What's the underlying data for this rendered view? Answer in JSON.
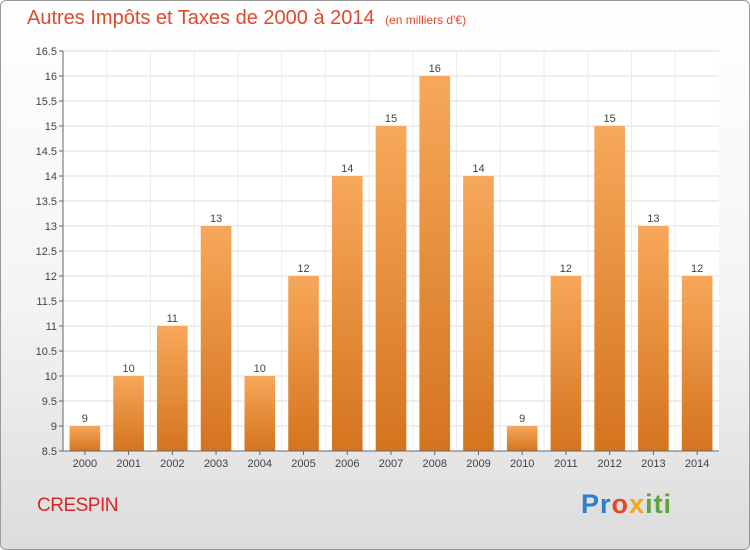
{
  "header": {
    "title": "Autres Impôts et Taxes de 2000 à 2014",
    "subtitle": "(en milliers d'€)"
  },
  "footer": {
    "place": "CRESPIN",
    "logo": "Proxiti"
  },
  "colors": {
    "title": "#e0492e",
    "bar_top": "#f7a85a",
    "bar_bottom": "#d4741f",
    "place": "#d8262b"
  },
  "chart_data": {
    "type": "bar",
    "categories": [
      "2000",
      "2001",
      "2002",
      "2003",
      "2004",
      "2005",
      "2006",
      "2007",
      "2008",
      "2009",
      "2010",
      "2011",
      "2012",
      "2013",
      "2014"
    ],
    "values": [
      9,
      10,
      11,
      13,
      10,
      12,
      14,
      15,
      16,
      14,
      9,
      12,
      15,
      13,
      12
    ],
    "ylim": [
      8.5,
      16.5
    ],
    "yticks": [
      "8.5",
      "9",
      "9.5",
      "10",
      "10.5",
      "11",
      "11.5",
      "12",
      "12.5",
      "13",
      "13.5",
      "14",
      "14.5",
      "15",
      "15.5",
      "16",
      "16.5"
    ],
    "grid": true,
    "legend": "none"
  }
}
